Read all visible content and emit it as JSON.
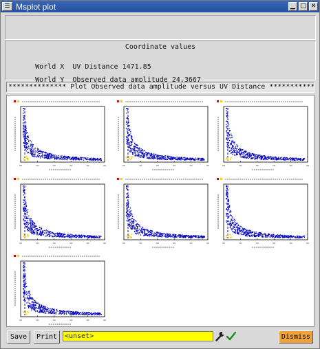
{
  "window": {
    "title": "Msplot plot",
    "menu_glyph": "☰",
    "minimize_glyph": "▁",
    "maximize_glyph": "□",
    "close_glyph": "✕"
  },
  "coordinates": {
    "title": "Coordinate values",
    "world_x_label": "World X",
    "world_x_value": "UV Distance 1471.85",
    "world_y_label": "World Y",
    "world_y_value": "Observed data amplitude 24.3667"
  },
  "banner": "************** Plot Observed data amplitude versus UV Distance **************",
  "plots": [
    {
      "id": 1
    },
    {
      "id": 2
    },
    {
      "id": 3
    },
    {
      "id": 4
    },
    {
      "id": 5
    },
    {
      "id": 6
    },
    {
      "id": 7
    }
  ],
  "toolbar": {
    "save_label": "Save",
    "print_label": "Print",
    "command_value": "<unset>",
    "dismiss_label": "Dismiss"
  },
  "colors": {
    "title_bar": "#2a57a8",
    "command_field": "#ffff00",
    "dismiss_button": "#f0a23a",
    "data_primary": "#0000cc",
    "data_secondary": "#000080",
    "data_flag": "#ffcc00"
  },
  "icons": {
    "window_menu": "window-menu-icon",
    "wrench": "wrench-icon",
    "check": "checkmark-icon"
  }
}
